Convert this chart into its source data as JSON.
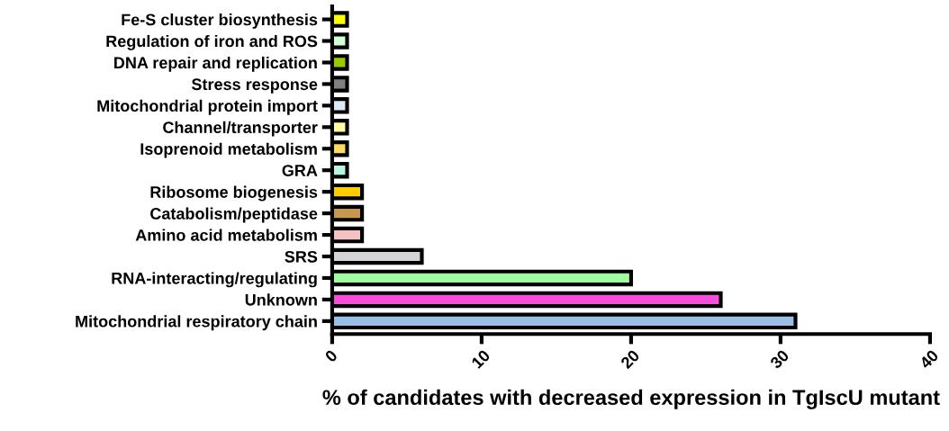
{
  "chart_data": {
    "type": "bar",
    "orientation": "horizontal",
    "xlabel": "% of candidates with decreased expression in TgIscU mutant",
    "categories": [
      "Fe-S cluster biosynthesis",
      "Regulation of iron and ROS",
      "DNA repair and replication",
      "Stress response",
      "Mitochondrial protein import",
      "Channel/transporter",
      "Isoprenoid metabolism",
      "GRA",
      "Ribosome biogenesis",
      "Catabolism/peptidase",
      "Amino acid metabolism",
      "SRS",
      "RNA-interacting/regulating",
      "Unknown",
      "Mitochondrial respiratory chain"
    ],
    "values": [
      1,
      1,
      1,
      1,
      1,
      1,
      1,
      1,
      2,
      2,
      2,
      6,
      20,
      26,
      31
    ],
    "colors": [
      "#ffff00",
      "#d4ffd4",
      "#99cc00",
      "#808080",
      "#dce9f5",
      "#ffffa0",
      "#ffd966",
      "#b8f5e0",
      "#ffcc00",
      "#c8964f",
      "#f4c2c2",
      "#d4d4d4",
      "#a0ff9f",
      "#f54ed8",
      "#99bfe6"
    ],
    "xlim": [
      0,
      40
    ],
    "xticks": [
      0,
      10,
      20,
      30,
      40
    ],
    "grid": false,
    "legend": false
  }
}
